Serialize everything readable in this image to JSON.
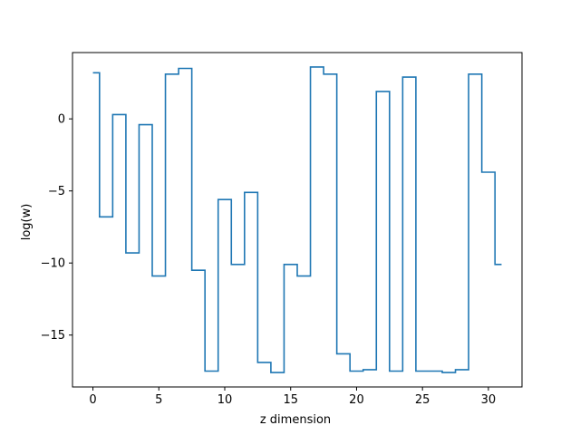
{
  "chart_data": {
    "type": "line",
    "drawstyle": "steps-mid",
    "title": "",
    "xlabel": "z dimension",
    "ylabel": "log(w)",
    "xlim": [
      -1.55,
      32.55
    ],
    "ylim": [
      -18.6,
      4.6
    ],
    "xticks": [
      0,
      5,
      10,
      15,
      20,
      25,
      30
    ],
    "yticks": [
      -15,
      -10,
      -5,
      0
    ],
    "ytick_labels": [
      "−15",
      "−10",
      "−5",
      "0"
    ],
    "grid": false,
    "legend": "none",
    "line_color": "#1f77b4",
    "x": [
      0,
      1,
      2,
      3,
      4,
      5,
      6,
      7,
      8,
      9,
      10,
      11,
      12,
      13,
      14,
      15,
      16,
      17,
      18,
      19,
      20,
      21,
      22,
      23,
      24,
      25,
      26,
      27,
      28,
      29,
      30,
      31
    ],
    "y": [
      3.2,
      -6.8,
      0.3,
      -9.3,
      -0.4,
      -10.9,
      3.1,
      3.5,
      -10.5,
      -17.5,
      -5.6,
      -10.1,
      -5.1,
      -16.9,
      -17.6,
      -10.1,
      -10.9,
      3.6,
      3.1,
      -16.3,
      -17.5,
      -17.4,
      1.9,
      -17.5,
      2.9,
      -17.5,
      -17.5,
      -17.6,
      -17.4,
      3.1,
      -3.7,
      -10.1
    ]
  }
}
